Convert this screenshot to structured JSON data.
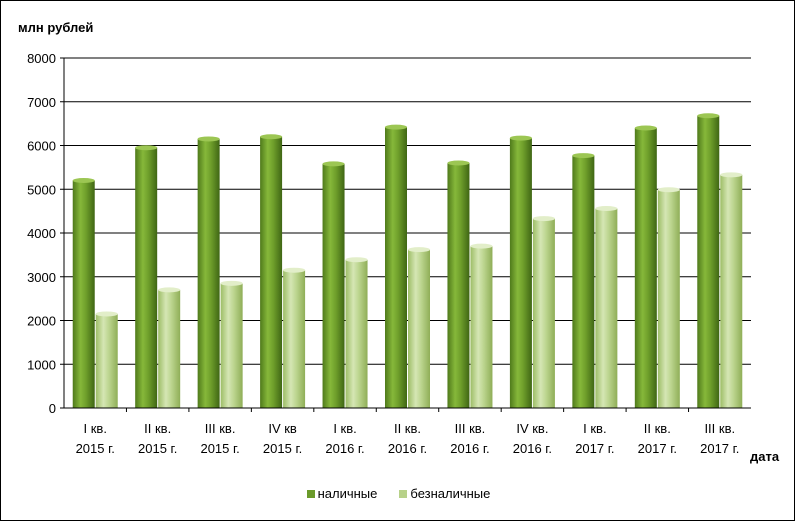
{
  "chart_data": {
    "type": "bar",
    "ylabel": "млн рублей",
    "xlabel": "дата",
    "ylim": [
      0,
      8000
    ],
    "yticks": [
      "0",
      "1000",
      "2000",
      "3000",
      "4000",
      "5000",
      "6000",
      "7000",
      "8000"
    ],
    "categories": [
      [
        "I кв.",
        "2015 г."
      ],
      [
        "II кв.",
        "2015 г."
      ],
      [
        "III кв.",
        "2015 г."
      ],
      [
        "IV кв",
        "2015 г."
      ],
      [
        "I кв.",
        "2016 г."
      ],
      [
        "II кв.",
        "2016 г."
      ],
      [
        "III кв.",
        "2016 г."
      ],
      [
        "IV кв.",
        "2016 г."
      ],
      [
        "I кв.",
        "2017 г."
      ],
      [
        "II кв.",
        "2017 г."
      ],
      [
        "III кв.",
        "2017 г."
      ]
    ],
    "series": [
      {
        "name": "наличные",
        "color": "#6a9a2a",
        "values": [
          5200,
          5950,
          6150,
          6200,
          5580,
          6420,
          5600,
          6170,
          5770,
          6400,
          6680
        ]
      },
      {
        "name": "безналичные",
        "color": "#b7d189",
        "values": [
          2150,
          2700,
          2850,
          3150,
          3390,
          3620,
          3700,
          4330,
          4560,
          4990,
          5330
        ]
      }
    ],
    "grid": true,
    "legend_position": "bottom"
  }
}
